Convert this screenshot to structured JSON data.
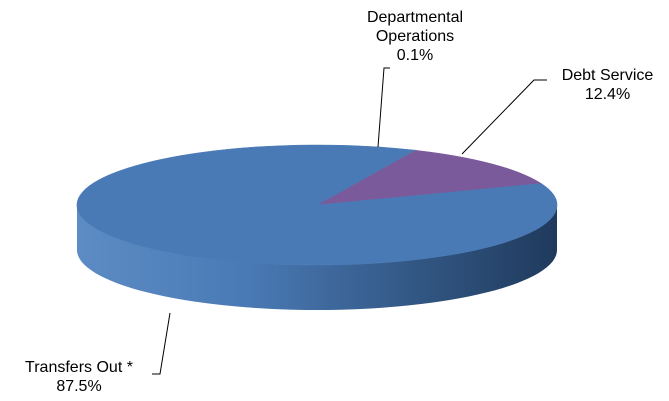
{
  "chart_data": {
    "type": "pie",
    "style": "3d",
    "title": "",
    "slices": [
      {
        "label": "Departmental Operations",
        "label_lines": [
          "Departmental",
          "Operations"
        ],
        "value": 0.1,
        "value_text": "0.1%",
        "color": "#7f7f7f"
      },
      {
        "label": "Debt Service",
        "label_lines": [
          "Debt Service"
        ],
        "value": 12.4,
        "value_text": "12.4%",
        "color": "#7b5a9b"
      },
      {
        "label": "Transfers Out *",
        "label_lines": [
          "Transfers Out *"
        ],
        "value": 87.5,
        "value_text": "87.5%",
        "color": "#4a7ab5"
      }
    ],
    "legend": "none"
  },
  "colors": {
    "side_dark": "#1f3a5c",
    "side_light": "#5d8cc4",
    "leader_line": "#000000",
    "background": "#ffffff"
  }
}
